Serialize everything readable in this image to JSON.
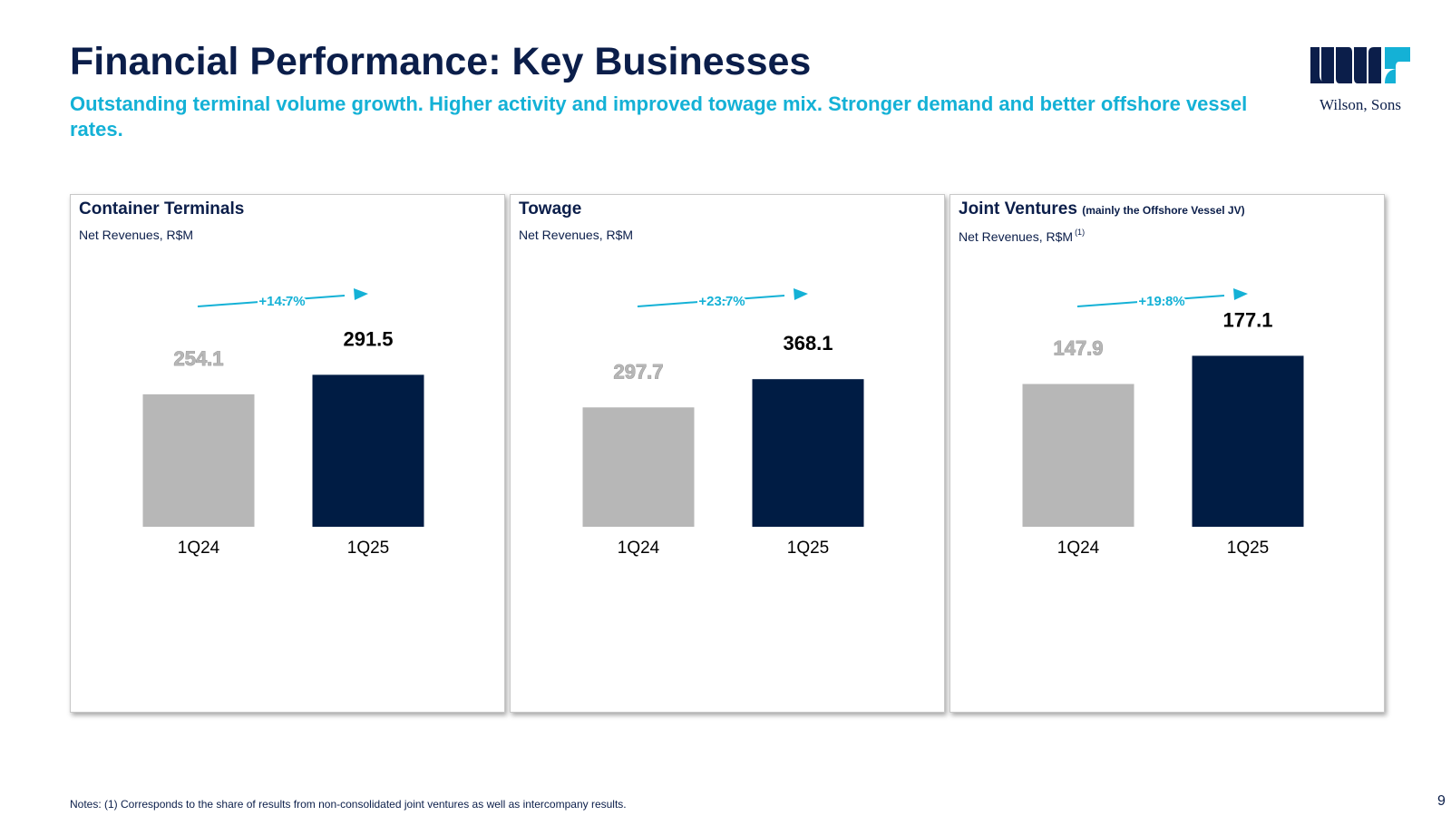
{
  "header": {
    "title": "Financial Performance: Key Businesses",
    "subtitle": "Outstanding terminal volume growth. Higher activity and improved towage mix. Stronger demand and better offshore vessel rates."
  },
  "logo": {
    "text": "Wilson, Sons",
    "icon": "wilson-sons-logo-icon"
  },
  "colors": {
    "prior": "#b7b7b7",
    "current": "#001c44",
    "growth": "#14b1d6",
    "title": "#0b1e4a"
  },
  "panels": [
    {
      "title": "Container Terminals",
      "title_note": "",
      "subtitle": "Net Revenues, R$M",
      "footnote_ref": ""
    },
    {
      "title": "Towage",
      "title_note": "",
      "subtitle": "Net Revenues, R$M",
      "footnote_ref": ""
    },
    {
      "title": "Joint Ventures",
      "title_note": "(mainly the Offshore Vessel JV)",
      "subtitle": "Net Revenues, R$M",
      "footnote_ref": "(1)"
    }
  ],
  "chart_data": [
    {
      "type": "bar",
      "categories": [
        "1Q24",
        "1Q25"
      ],
      "values": [
        254.1,
        291.5
      ],
      "value_labels": [
        "254.1",
        "291.5"
      ],
      "growth_label": "+14.7%",
      "ylim": [
        0,
        400
      ]
    },
    {
      "type": "bar",
      "categories": [
        "1Q24",
        "1Q25"
      ],
      "values": [
        297.7,
        368.1
      ],
      "value_labels": [
        "297.7",
        "368.1"
      ],
      "growth_label": "+23.7%",
      "ylim": [
        0,
        520
      ]
    },
    {
      "type": "bar",
      "categories": [
        "1Q24",
        "1Q25"
      ],
      "values": [
        147.9,
        177.1
      ],
      "value_labels": [
        "147.9",
        "177.1"
      ],
      "growth_label": "+19.8%",
      "ylim": [
        0,
        216
      ]
    }
  ],
  "footer": {
    "notes": "Notes: (1) Corresponds to the share of results from non-consolidated joint ventures as well as intercompany results.",
    "page": "9"
  }
}
